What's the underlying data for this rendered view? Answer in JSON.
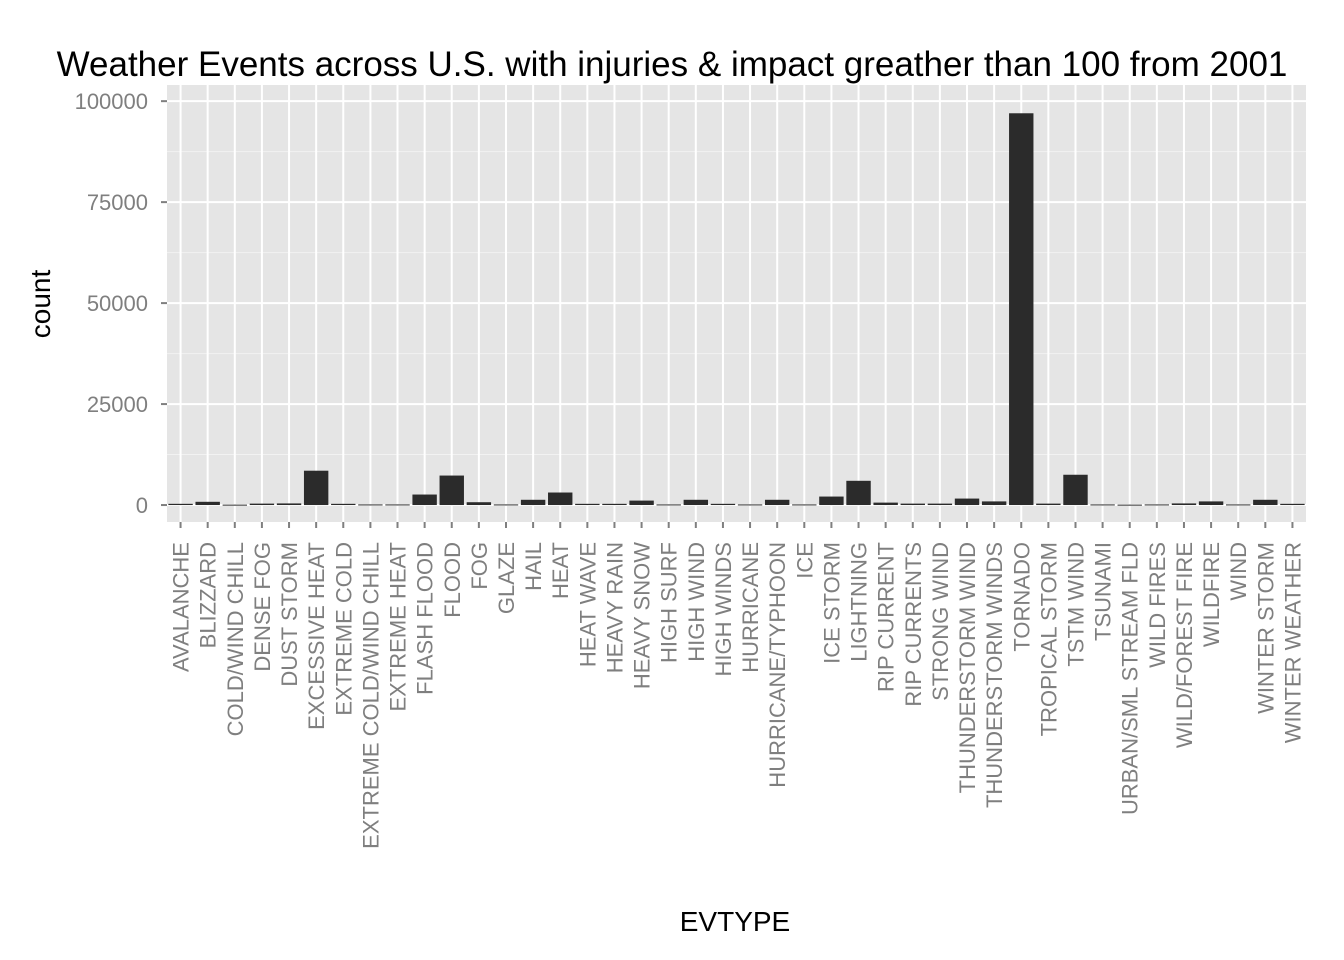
{
  "chart_data": {
    "type": "bar",
    "title": "Weather Events across U.S. with injuries & impact greather than 100 from 2001",
    "xlabel": "EVTYPE",
    "ylabel": "count",
    "ylim": [
      -4200,
      104000
    ],
    "yticks": [
      "0",
      "25000",
      "50000",
      "75000",
      "100000"
    ],
    "grid": true,
    "legend": "none",
    "colors": {
      "panel": "#e5e5e5",
      "grid": "#ffffff",
      "bar": "#2b2b2b",
      "tick_text": "#7f7f7f",
      "tick_mark": "#7f7f7f"
    },
    "categories": [
      "AVALANCHE",
      "BLIZZARD",
      "COLD/WIND CHILL",
      "DENSE FOG",
      "DUST STORM",
      "EXCESSIVE HEAT",
      "EXTREME COLD",
      "EXTREME COLD/WIND CHILL",
      "EXTREME HEAT",
      "FLASH FLOOD",
      "FLOOD",
      "FOG",
      "GLAZE",
      "HAIL",
      "HEAT",
      "HEAT WAVE",
      "HEAVY RAIN",
      "HEAVY SNOW",
      "HIGH SURF",
      "HIGH WIND",
      "HIGH WINDS",
      "HURRICANE",
      "HURRICANE/TYPHOON",
      "ICE",
      "ICE STORM",
      "LIGHTNING",
      "RIP CURRENT",
      "RIP CURRENTS",
      "STRONG WIND",
      "THUNDERSTORM WIND",
      "THUNDERSTORM WINDS",
      "TORNADO",
      "TROPICAL STORM",
      "TSTM WIND",
      "TSUNAMI",
      "URBAN/SML STREAM FLD",
      "WILD FIRES",
      "WILD/FOREST FIRE",
      "WILDFIRE",
      "WIND",
      "WINTER STORM",
      "WINTER WEATHER"
    ],
    "values": [
      300,
      800,
      100,
      350,
      400,
      8500,
      300,
      150,
      150,
      2600,
      7300,
      700,
      150,
      1300,
      3100,
      300,
      300,
      1100,
      150,
      1300,
      300,
      150,
      1300,
      150,
      2100,
      6000,
      600,
      350,
      350,
      1600,
      900,
      97000,
      350,
      7500,
      150,
      100,
      150,
      400,
      900,
      150,
      1300,
      300
    ]
  }
}
